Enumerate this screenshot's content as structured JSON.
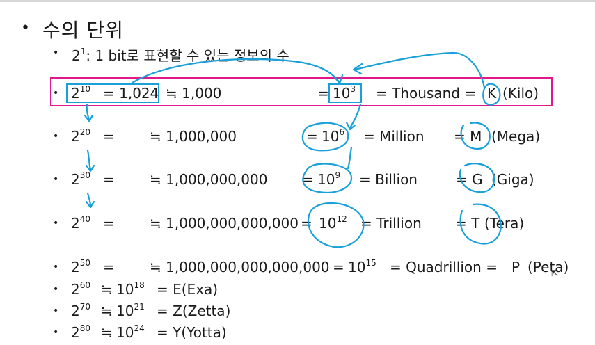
{
  "heading": {
    "bullet": "•",
    "title": "수의 단위"
  },
  "sub": {
    "bullet": "•",
    "base": "2",
    "exp": "1",
    "text": ": 1 bit로 표현할 수 있는 정보의 수"
  },
  "rows": [
    {
      "bullet": "•",
      "base": "2",
      "exp": "10",
      "eq": "= 1,024",
      "approx": "≒ 1,000",
      "pow_pre": "=",
      "pow_base": "10",
      "pow_exp": "3",
      "name": "= Thousand =",
      "sym": "K",
      "unit": "(Kilo)"
    },
    {
      "bullet": "•",
      "base": "2",
      "exp": "20",
      "eq": "=",
      "approx": "≒ 1,000,000",
      "pow_pre": "=",
      "pow_base": "10",
      "pow_exp": "6",
      "name": "= Million",
      "sym": "= M",
      "unit": "(Mega)"
    },
    {
      "bullet": "•",
      "base": "2",
      "exp": "30",
      "eq": "=",
      "approx": "≒ 1,000,000,000",
      "pow_pre": "=",
      "pow_base": "10",
      "pow_exp": "9",
      "name": "= Billion",
      "sym": "= G",
      "unit": "(Giga)"
    },
    {
      "bullet": "•",
      "base": "2",
      "exp": "40",
      "eq": "=",
      "approx": "≒ 1,000,000,000,000",
      "pow_pre": "=",
      "pow_base": "10",
      "pow_exp": "12",
      "name": "= Trillion",
      "sym": "= T",
      "unit": "(Tera)"
    },
    {
      "bullet": "•",
      "base": "2",
      "exp": "50",
      "eq": "=",
      "approx": "≒ 1,000,000,000,000,000",
      "pow_pre": "=",
      "pow_base": "10",
      "pow_exp": "15",
      "name": "= Quadrillion =",
      "sym": "P",
      "unit": "(Peta)"
    }
  ],
  "short_rows": [
    {
      "bullet": "•",
      "base": "2",
      "exp": "60",
      "approx": "≒",
      "pow_base": "10",
      "pow_exp": "18",
      "text": "= E(Exa)"
    },
    {
      "bullet": "•",
      "base": "2",
      "exp": "70",
      "approx": "≒",
      "pow_base": "10",
      "pow_exp": "21",
      "text": "= Z(Zetta)"
    },
    {
      "bullet": "•",
      "base": "2",
      "exp": "80",
      "approx": "≒",
      "pow_base": "10",
      "pow_exp": "24",
      "text": "= Y(Yotta)"
    }
  ],
  "colors": {
    "highlight_box": "#e0188a",
    "ink": "#1aa0d8",
    "text": "#1a1a1a"
  },
  "icons": {
    "cursor": "cursor-icon"
  }
}
